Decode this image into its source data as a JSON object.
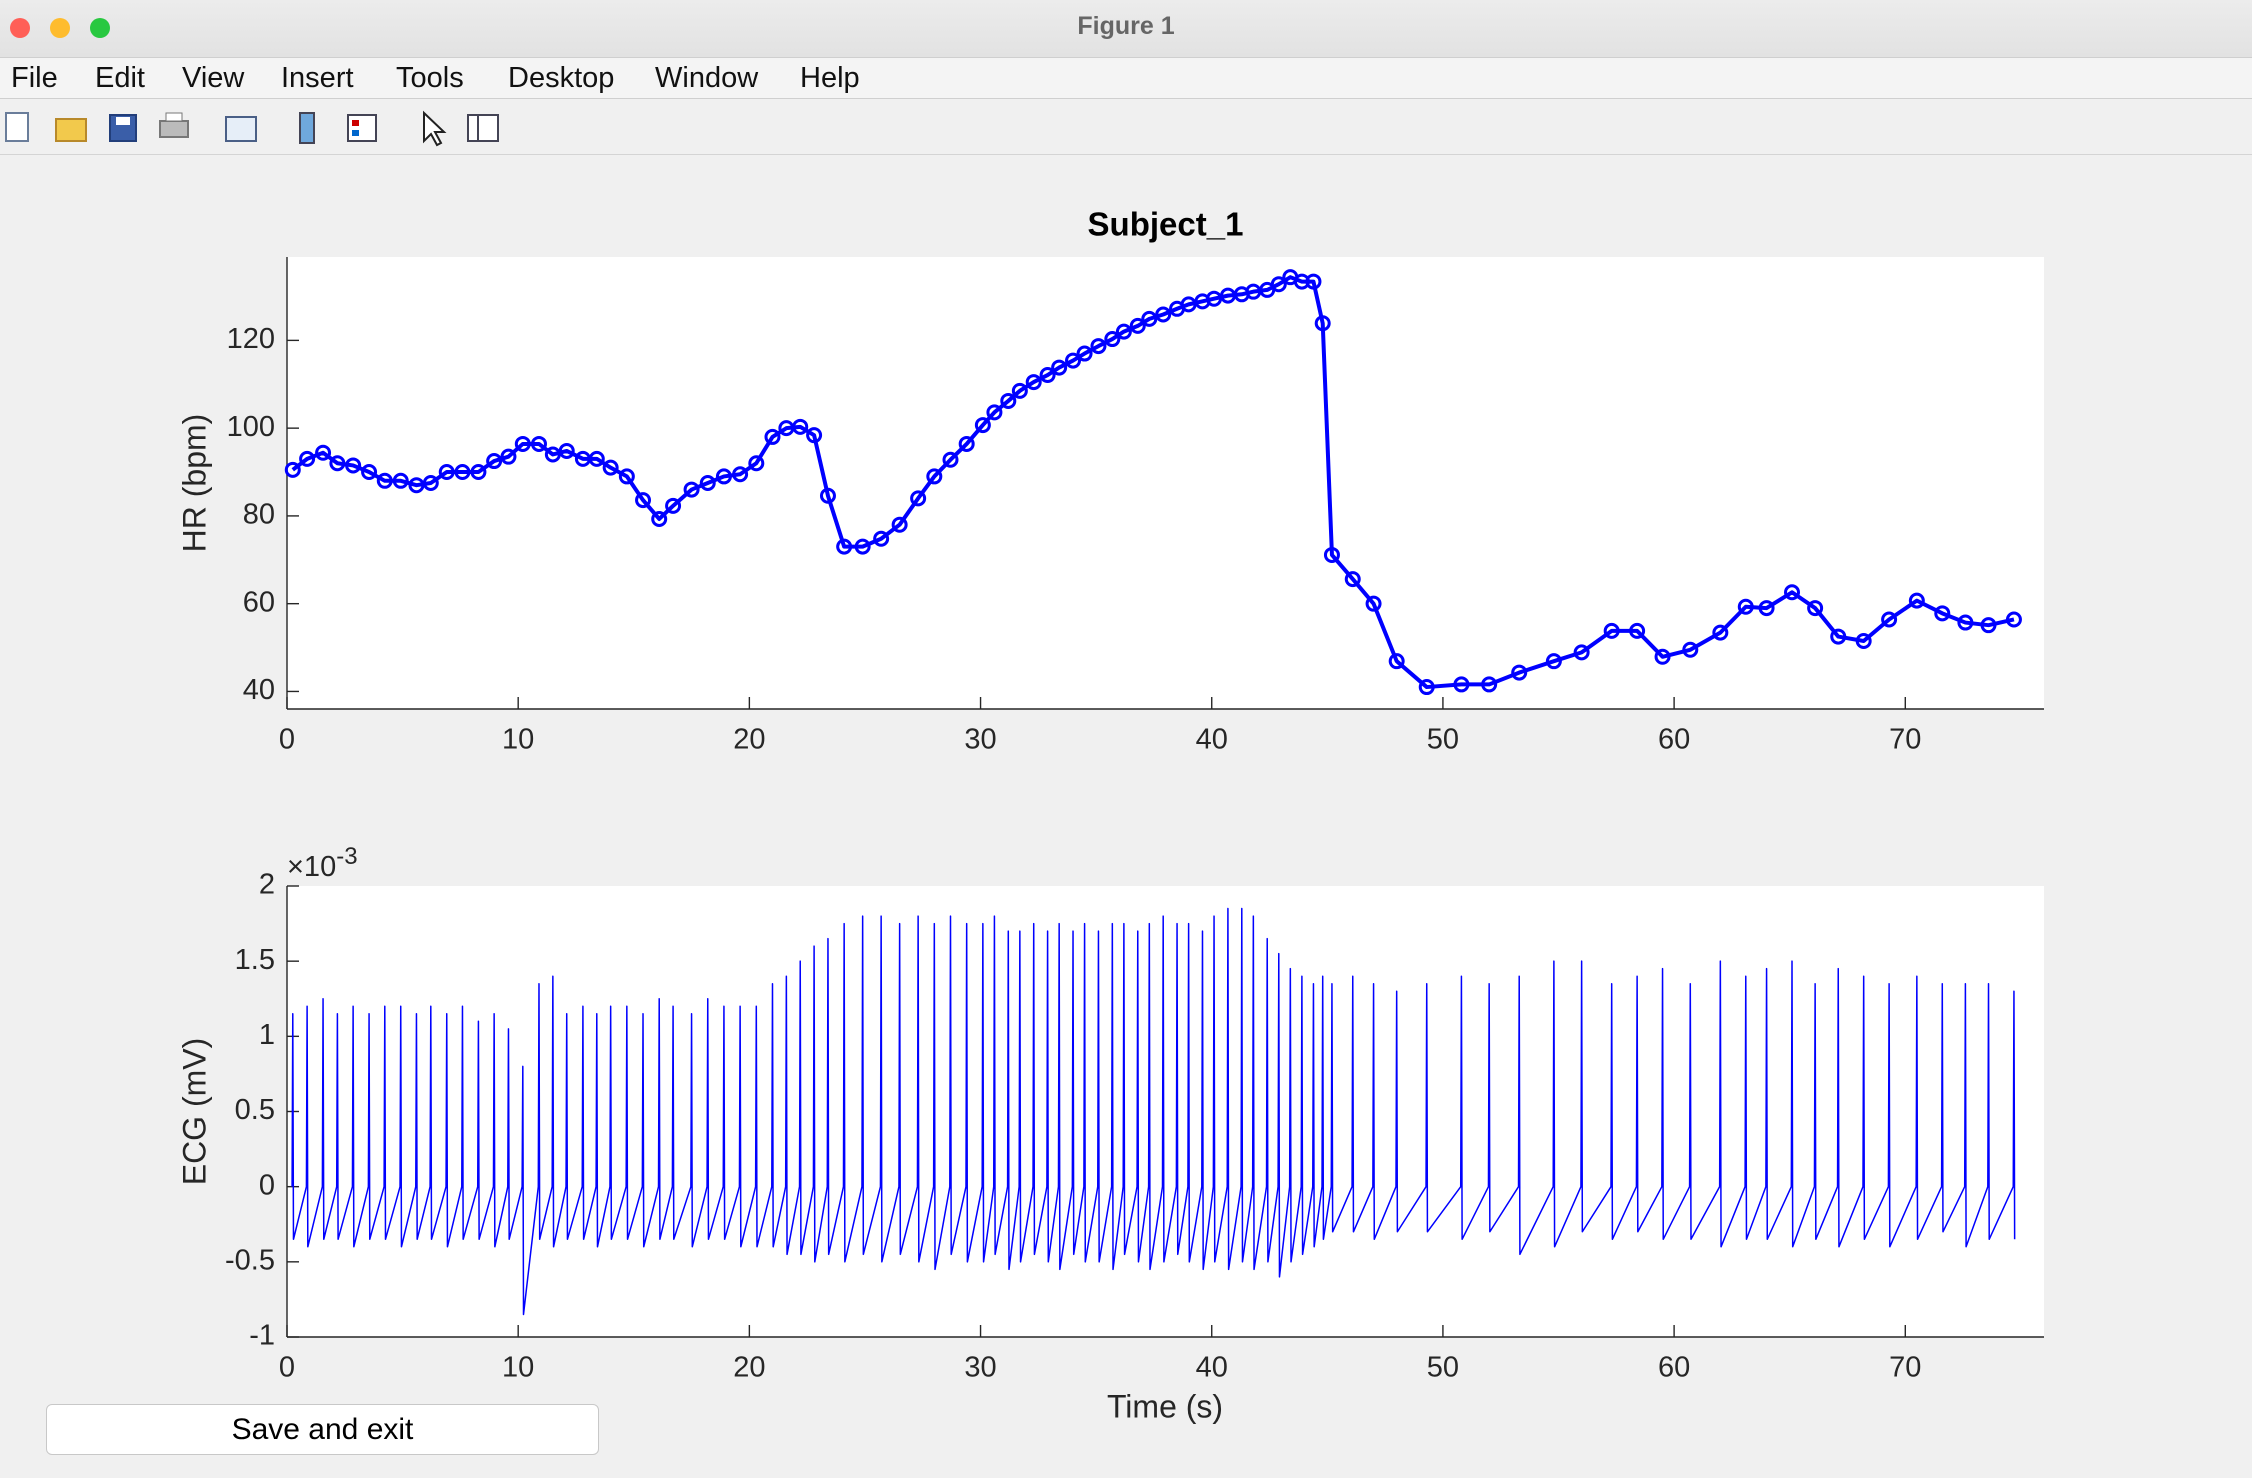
{
  "window": {
    "title": "Figure 1"
  },
  "menu": [
    "File",
    "Edit",
    "View",
    "Insert",
    "Tools",
    "Desktop",
    "Window",
    "Help"
  ],
  "button": {
    "label": "Save and exit"
  },
  "chart_data": [
    {
      "type": "line",
      "title": "Subject_1",
      "ylabel": "HR (bpm)",
      "color": "#0000ff",
      "marker": "circle",
      "x": [
        0.25,
        0.87,
        1.56,
        2.18,
        2.86,
        3.55,
        4.23,
        4.92,
        5.6,
        6.22,
        6.91,
        7.59,
        8.28,
        8.96,
        9.58,
        10.2,
        10.9,
        11.5,
        12.1,
        12.8,
        13.4,
        14.0,
        14.7,
        15.4,
        16.1,
        16.7,
        17.5,
        18.2,
        18.9,
        19.6,
        20.3,
        21.0,
        21.6,
        22.2,
        22.8,
        23.4,
        24.1,
        24.9,
        25.7,
        26.5,
        27.3,
        28.0,
        28.7,
        29.4,
        30.1,
        30.6,
        31.2,
        31.7,
        32.3,
        32.9,
        33.4,
        34.0,
        34.5,
        35.1,
        35.7,
        36.2,
        36.8,
        37.3,
        37.9,
        38.5,
        39.0,
        39.6,
        40.1,
        40.7,
        41.3,
        41.8,
        42.4,
        42.9,
        43.4,
        43.9,
        44.4,
        44.8,
        45.2,
        46.1,
        47.0,
        48.0,
        49.3,
        50.8,
        52.0,
        53.3,
        54.8,
        56.0,
        57.3,
        58.4,
        59.5,
        60.7,
        62.0,
        63.1,
        64.0,
        65.1,
        66.1,
        67.1,
        68.2,
        69.3,
        70.5,
        71.6,
        72.6,
        73.6,
        74.7
      ],
      "values": [
        90.5,
        93,
        94.4,
        92,
        91.5,
        90,
        88,
        88,
        87,
        87.5,
        90,
        90,
        90,
        92.5,
        93.5,
        96.4,
        96.4,
        94,
        94.8,
        93,
        93,
        91,
        89,
        83.6,
        79.3,
        82.3,
        86,
        87.5,
        89,
        89.5,
        92,
        98,
        100,
        100.3,
        98.4,
        84.6,
        73,
        73,
        74.8,
        78,
        84,
        89,
        92.8,
        96.4,
        100.7,
        103.6,
        106.2,
        108.5,
        110.5,
        112.1,
        113.8,
        115.4,
        117,
        118.7,
        120.3,
        122,
        123.3,
        124.9,
        125.9,
        127.2,
        128.2,
        128.9,
        129.5,
        130.2,
        130.5,
        131.1,
        131.5,
        132.8,
        134.4,
        133.4,
        133.4,
        123.9,
        71.1,
        65.6,
        60,
        46.9,
        41,
        41.6,
        41.6,
        44.3,
        46.9,
        48.9,
        53.8,
        53.8,
        47.9,
        49.5,
        53.4,
        59.3,
        59,
        62.6,
        59,
        52.5,
        51.5,
        56.4,
        60.7,
        57.8,
        55.7,
        55.1,
        56.4
      ],
      "xlim": [
        0,
        76
      ],
      "ylim": [
        36,
        139
      ],
      "xticks": [
        0,
        10,
        20,
        30,
        40,
        50,
        60,
        70
      ],
      "yticks": [
        40,
        60,
        80,
        100,
        120
      ]
    },
    {
      "type": "line",
      "ylabel": "ECG (mV)",
      "xlabel": "Time (s)",
      "color": "#0000ff",
      "y_exponent": {
        "base": "×10",
        "power": "-3"
      },
      "x": [
        0.22,
        0.25,
        0.28,
        0.84,
        0.87,
        0.9,
        1.53,
        1.56,
        1.59,
        2.15,
        2.18,
        2.21,
        2.83,
        2.86,
        2.89,
        3.52,
        3.55,
        3.58,
        4.2,
        4.23,
        4.26,
        4.89,
        4.92,
        4.95,
        5.57,
        5.6,
        5.63,
        6.19,
        6.22,
        6.25,
        6.88,
        6.91,
        6.94,
        7.56,
        7.59,
        7.62,
        8.25,
        8.28,
        8.31,
        8.93,
        8.96,
        8.99,
        9.55,
        9.58,
        9.61,
        10.17,
        10.2,
        10.23,
        10.87,
        10.9,
        10.93,
        11.47,
        11.5,
        11.53,
        12.07,
        12.1,
        12.13,
        12.77,
        12.8,
        12.83,
        13.37,
        13.4,
        13.43,
        13.97,
        14,
        14.03,
        14.67,
        14.7,
        14.73,
        15.37,
        15.4,
        15.43,
        16.07,
        16.1,
        16.13,
        16.67,
        16.7,
        16.73,
        17.47,
        17.5,
        17.53,
        18.17,
        18.2,
        18.23,
        18.87,
        18.9,
        18.93,
        19.57,
        19.6,
        19.63,
        20.27,
        20.3,
        20.33,
        20.97,
        21,
        21.03,
        21.57,
        21.6,
        21.63,
        22.17,
        22.2,
        22.23,
        22.77,
        22.8,
        22.83,
        23.37,
        23.4,
        23.43,
        24.07,
        24.1,
        24.13,
        24.87,
        24.9,
        24.93,
        25.67,
        25.7,
        25.73,
        26.47,
        26.5,
        26.53,
        27.27,
        27.3,
        27.33,
        27.97,
        28,
        28.03,
        28.67,
        28.7,
        28.73,
        29.37,
        29.4,
        29.43,
        30.07,
        30.1,
        30.13,
        30.57,
        30.6,
        30.63,
        31.17,
        31.2,
        31.23,
        31.67,
        31.7,
        31.73,
        32.27,
        32.3,
        32.33,
        32.87,
        32.9,
        32.93,
        33.37,
        33.4,
        33.43,
        33.97,
        34,
        34.03,
        34.47,
        34.5,
        34.53,
        35.07,
        35.1,
        35.13,
        35.67,
        35.7,
        35.73,
        36.17,
        36.2,
        36.23,
        36.77,
        36.8,
        36.83,
        37.27,
        37.3,
        37.33,
        37.87,
        37.9,
        37.93,
        38.47,
        38.5,
        38.53,
        38.97,
        39,
        39.03,
        39.57,
        39.6,
        39.63,
        40.07,
        40.1,
        40.13,
        40.67,
        40.7,
        40.73,
        41.27,
        41.3,
        41.33,
        41.77,
        41.8,
        41.83,
        42.37,
        42.4,
        42.43,
        42.87,
        42.9,
        42.93,
        43.37,
        43.4,
        43.43,
        43.87,
        43.9,
        43.93,
        44.37,
        44.4,
        44.43,
        44.77,
        44.8,
        44.83,
        45.17,
        45.2,
        45.23,
        46.07,
        46.1,
        46.13,
        46.97,
        47,
        47.03,
        47.97,
        48,
        48.03,
        49.27,
        49.3,
        49.33,
        50.77,
        50.8,
        50.83,
        51.97,
        52,
        52.03,
        53.27,
        53.3,
        53.33,
        54.77,
        54.8,
        54.83,
        55.97,
        56,
        56.03,
        57.27,
        57.3,
        57.33,
        58.37,
        58.4,
        58.43,
        59.47,
        59.5,
        59.53,
        60.67,
        60.7,
        60.73,
        61.97,
        62,
        62.03,
        63.07,
        63.1,
        63.13,
        63.97,
        64,
        64.03,
        65.07,
        65.1,
        65.13,
        66.07,
        66.1,
        66.13,
        67.07,
        67.1,
        67.13,
        68.17,
        68.2,
        68.23,
        69.27,
        69.3,
        69.33,
        70.47,
        70.5,
        70.53,
        71.57,
        71.6,
        71.63,
        72.57,
        72.6,
        72.63,
        73.57,
        73.6,
        73.63,
        74.67,
        74.7,
        74.73
      ],
      "values": [
        0,
        1.15,
        -0.35,
        0,
        1.2,
        -0.4,
        0,
        1.25,
        -0.35,
        0,
        1.15,
        -0.35,
        0,
        1.2,
        -0.4,
        0,
        1.15,
        -0.35,
        0,
        1.2,
        -0.35,
        0,
        1.2,
        -0.4,
        0,
        1.15,
        -0.35,
        0,
        1.2,
        -0.35,
        0,
        1.15,
        -0.4,
        0,
        1.2,
        -0.35,
        0,
        1.1,
        -0.35,
        0,
        1.15,
        -0.4,
        0,
        1.05,
        -0.35,
        0,
        0.8,
        -0.85,
        0,
        1.35,
        -0.35,
        0,
        1.4,
        -0.4,
        0,
        1.15,
        -0.35,
        0,
        1.2,
        -0.35,
        0,
        1.15,
        -0.4,
        0,
        1.2,
        -0.35,
        0,
        1.2,
        -0.35,
        0,
        1.15,
        -0.4,
        0,
        1.25,
        -0.35,
        0,
        1.2,
        -0.35,
        0,
        1.15,
        -0.4,
        0,
        1.25,
        -0.35,
        0,
        1.2,
        -0.35,
        0,
        1.2,
        -0.4,
        0,
        1.2,
        -0.4,
        0,
        1.35,
        -0.4,
        0,
        1.4,
        -0.45,
        0,
        1.5,
        -0.45,
        0,
        1.6,
        -0.5,
        0,
        1.65,
        -0.45,
        0,
        1.75,
        -0.5,
        0,
        1.8,
        -0.45,
        0,
        1.8,
        -0.5,
        0,
        1.75,
        -0.45,
        0,
        1.8,
        -0.5,
        0,
        1.75,
        -0.55,
        0,
        1.8,
        -0.45,
        0,
        1.75,
        -0.5,
        0,
        1.75,
        -0.5,
        0,
        1.8,
        -0.45,
        0,
        1.7,
        -0.55,
        0,
        1.7,
        -0.5,
        0,
        1.75,
        -0.45,
        0,
        1.7,
        -0.5,
        0,
        1.75,
        -0.55,
        0,
        1.7,
        -0.45,
        0,
        1.75,
        -0.5,
        0,
        1.7,
        -0.5,
        0,
        1.75,
        -0.55,
        0,
        1.75,
        -0.45,
        0,
        1.7,
        -0.5,
        0,
        1.75,
        -0.55,
        0,
        1.8,
        -0.5,
        0,
        1.75,
        -0.45,
        0,
        1.75,
        -0.5,
        0,
        1.7,
        -0.55,
        0,
        1.8,
        -0.5,
        0,
        1.85,
        -0.55,
        0,
        1.85,
        -0.5,
        0,
        1.8,
        -0.55,
        0,
        1.65,
        -0.5,
        0,
        1.55,
        -0.6,
        0,
        1.45,
        -0.5,
        0,
        1.4,
        -0.45,
        0,
        1.35,
        -0.4,
        0,
        1.4,
        -0.35,
        0,
        1.35,
        -0.3,
        0,
        1.4,
        -0.3,
        0,
        1.35,
        -0.35,
        0,
        1.3,
        -0.3,
        0,
        1.35,
        -0.3,
        0,
        1.4,
        -0.35,
        0,
        1.35,
        -0.3,
        0,
        1.4,
        -0.45,
        0,
        1.5,
        -0.4,
        0,
        1.5,
        -0.3,
        0,
        1.35,
        -0.35,
        0,
        1.4,
        -0.3,
        0,
        1.45,
        -0.35,
        0,
        1.35,
        -0.35,
        0,
        1.5,
        -0.4,
        0,
        1.4,
        -0.35,
        0,
        1.45,
        -0.35,
        0,
        1.5,
        -0.4,
        0,
        1.35,
        -0.35,
        0,
        1.45,
        -0.4,
        0,
        1.4,
        -0.35,
        0,
        1.35,
        -0.4,
        0,
        1.4,
        -0.35,
        0,
        1.35,
        -0.3,
        0,
        1.35,
        -0.4,
        0,
        1.35,
        -0.35,
        0,
        1.3,
        -0.35
      ],
      "xlim": [
        0,
        76
      ],
      "ylim": [
        -1,
        2
      ],
      "xticks": [
        0,
        10,
        20,
        30,
        40,
        50,
        60,
        70
      ],
      "yticks": [
        -1,
        -0.5,
        0,
        0.5,
        1,
        1.5,
        2
      ]
    }
  ]
}
